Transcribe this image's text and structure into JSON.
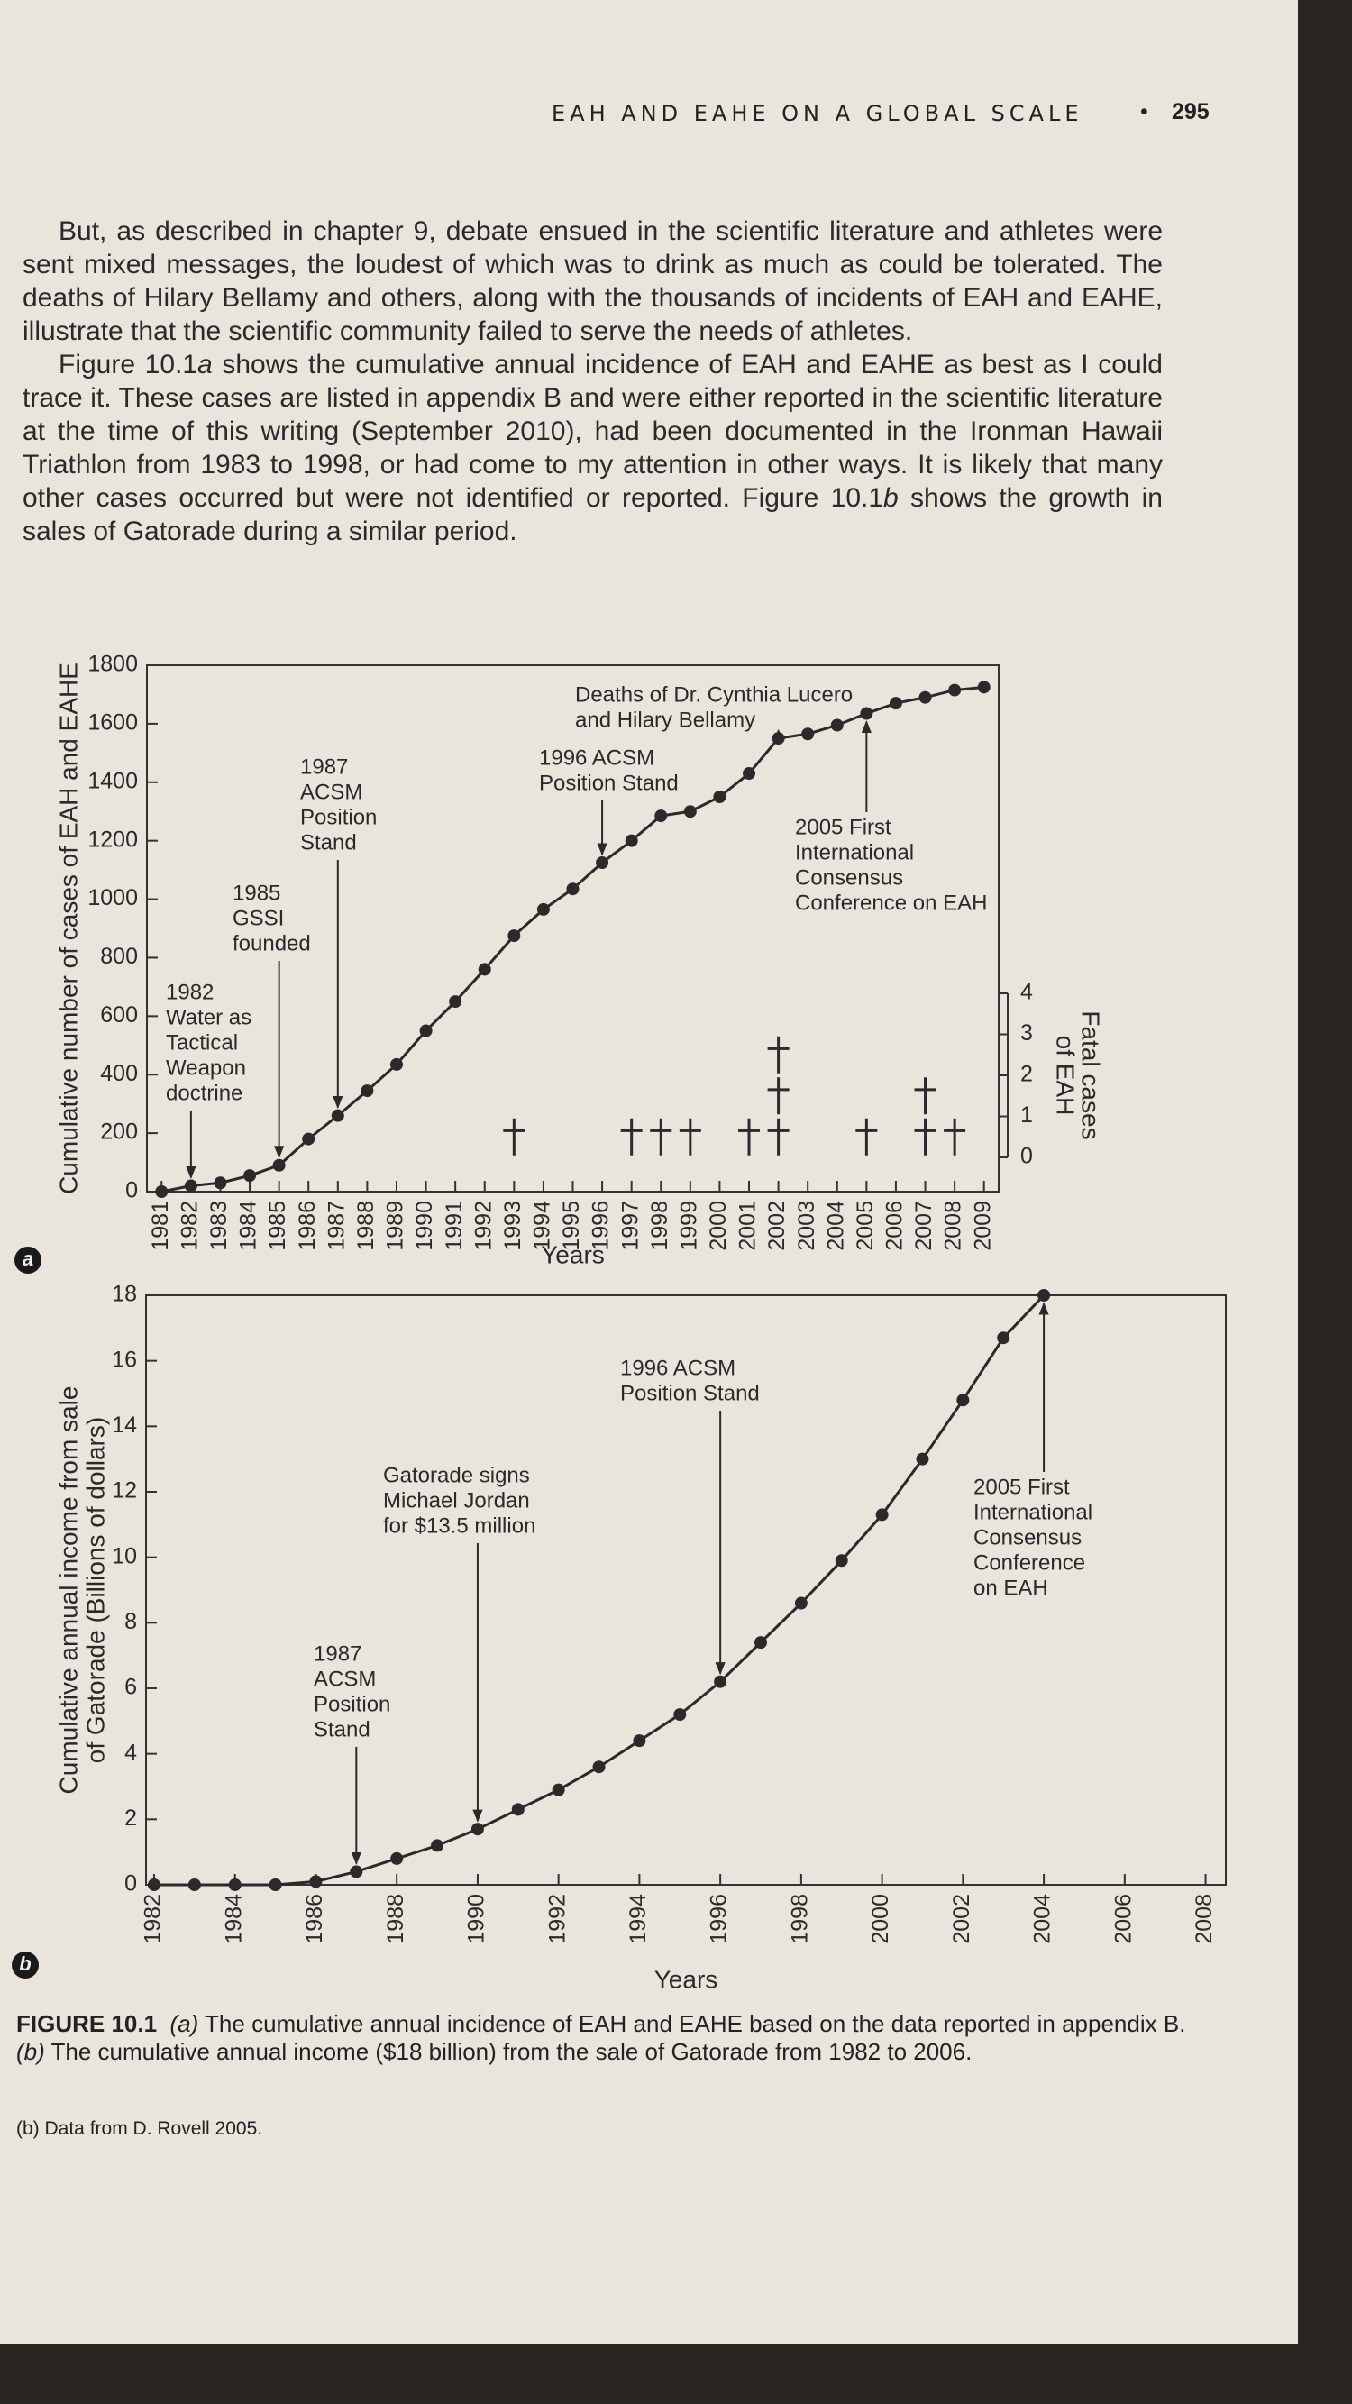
{
  "header": {
    "running_head": "EAH AND EAHE ON A GLOBAL SCALE",
    "page_number": "295"
  },
  "body": {
    "paragraphs": [
      [
        "But, as described in chapter 9, debate ensued in the scientific literature and athletes were sent mixed messages, the loudest of which was to drink as much as could be tolerated. The deaths of Hilary Bellamy and others, along with the thousands of incidents of EAH and EAHE, illustrate that the scientific community failed to serve the needs of athletes."
      ],
      [
        "Figure 10.1",
        "a",
        " shows the cumulative annual incidence of EAH and EAHE as best as I could trace it. These cases are listed in appendix B and were either reported in the scientific literature at the time of this writing (September 2010), had been documented in the Ironman Hawaii Triathlon from 1983 to 1998, or had come to my attention in other ways. It is likely that many other cases occurred but were not identified or reported. Figure 10.1",
        "b",
        " shows the growth in sales of Gatorade during a similar period."
      ]
    ]
  },
  "chart_data": [
    {
      "type": "line",
      "panel_label": "a",
      "xlabel": "Years",
      "ylabel": "Cumulative number of cases of EAH and EAHE",
      "y2label": [
        "Fatal cases",
        "of EAH"
      ],
      "x": [
        1981,
        1982,
        1983,
        1984,
        1985,
        1986,
        1987,
        1988,
        1989,
        1990,
        1991,
        1992,
        1993,
        1994,
        1995,
        1996,
        1997,
        1998,
        1999,
        2000,
        2001,
        2002,
        2003,
        2004,
        2005,
        2006,
        2007,
        2008,
        2009
      ],
      "xlim": [
        1980.5,
        2009.5
      ],
      "xticks": [
        1981,
        1982,
        1983,
        1984,
        1985,
        1986,
        1987,
        1988,
        1989,
        1990,
        1991,
        1992,
        1993,
        1994,
        1995,
        1996,
        1997,
        1998,
        1999,
        2000,
        2001,
        2002,
        2003,
        2004,
        2005,
        2006,
        2007,
        2008,
        2009
      ],
      "ylim": [
        0,
        1800
      ],
      "yticks": [
        0,
        200,
        400,
        600,
        800,
        1000,
        1200,
        1400,
        1600,
        1800
      ],
      "y2lim": [
        0,
        4
      ],
      "y2ticks": [
        0,
        1,
        2,
        3,
        4
      ],
      "series": [
        {
          "color": "#2a2a2a",
          "values": [
            0,
            20,
            30,
            55,
            90,
            180,
            260,
            345,
            435,
            550,
            650,
            760,
            875,
            965,
            1035,
            1125,
            1200,
            1285,
            1300,
            1350,
            1430,
            1550,
            1565,
            1595,
            1635,
            1670,
            1690,
            1715,
            1725
          ]
        },
        {
          "color": "#2a2a2a",
          "axis": "y2",
          "marker": "cross",
          "x": [
            1993,
            1997,
            1998,
            1999,
            2001,
            2002,
            2005,
            2007,
            2008
          ],
          "values": [
            1,
            1,
            1,
            1,
            1,
            3,
            1,
            2,
            1
          ]
        }
      ],
      "annotations": [
        {
          "text_lines": [
            "1982",
            "Water as",
            "Tactical",
            "Weapon",
            "doctrine"
          ],
          "x": 1982
        },
        {
          "text_lines": [
            "1985",
            "GSSI",
            "founded"
          ],
          "x": 1985
        },
        {
          "text_lines": [
            "1987",
            "ACSM",
            "Position",
            "Stand"
          ],
          "x": 1987
        },
        {
          "text_lines": [
            "1996 ACSM",
            "Position Stand"
          ],
          "x": 1996
        },
        {
          "text_lines": [
            "Deaths of Dr. Cynthia Lucero",
            "and Hilary Bellamy"
          ],
          "x": 2002
        },
        {
          "text_lines": [
            "2005 First",
            "International",
            "Consensus",
            "Conference on EAH"
          ],
          "x": 2005
        }
      ]
    },
    {
      "type": "line",
      "panel_label": "b",
      "xlabel": "Years",
      "ylabel": [
        "Cumulative annual income from sale",
        "of Gatorade (Billions of dollars)"
      ],
      "x": [
        1982,
        1983,
        1984,
        1985,
        1986,
        1987,
        1988,
        1989,
        1990,
        1991,
        1992,
        1993,
        1994,
        1995,
        1996,
        1997,
        1998,
        1999,
        2000,
        2001,
        2002,
        2003,
        2004
      ],
      "xlim": [
        1981.8,
        2008.5
      ],
      "xticks": [
        1982,
        1984,
        1986,
        1988,
        1990,
        1992,
        1994,
        1996,
        1998,
        2000,
        2002,
        2004,
        2006,
        2008
      ],
      "ylim": [
        0,
        18
      ],
      "yticks": [
        0,
        2,
        4,
        6,
        8,
        10,
        12,
        14,
        16,
        18
      ],
      "series": [
        {
          "color": "#2a2a2a",
          "values": [
            0,
            0,
            0,
            0,
            0.1,
            0.4,
            0.8,
            1.2,
            1.7,
            2.3,
            2.9,
            3.6,
            4.4,
            5.2,
            6.2,
            7.4,
            8.6,
            9.9,
            11.3,
            13.0,
            14.8,
            16.7,
            18
          ]
        }
      ],
      "annotations": [
        {
          "text_lines": [
            "1987",
            "ACSM",
            "Position",
            "Stand"
          ],
          "x": 1987
        },
        {
          "text_lines": [
            "Gatorade signs",
            "Michael Jordan",
            "for $13.5 million"
          ],
          "x": 1990
        },
        {
          "text_lines": [
            "1996 ACSM",
            "Position Stand"
          ],
          "x": 1996
        },
        {
          "text_lines": [
            "2005 First",
            "International",
            "Consensus",
            "Conference",
            "on EAH"
          ],
          "x": 2004
        }
      ]
    }
  ],
  "figure": {
    "caption": {
      "label": "FIGURE 10.1",
      "parts": [
        "(a)",
        " The cumulative annual incidence of EAH and EAHE based on the data reported in appendix B.",
        "(b)",
        " The cumulative annual income ($18 billion) from the sale of Gatorade from 1982 to 2006."
      ],
      "source": "(b) Data from D. Rovell 2005."
    }
  }
}
